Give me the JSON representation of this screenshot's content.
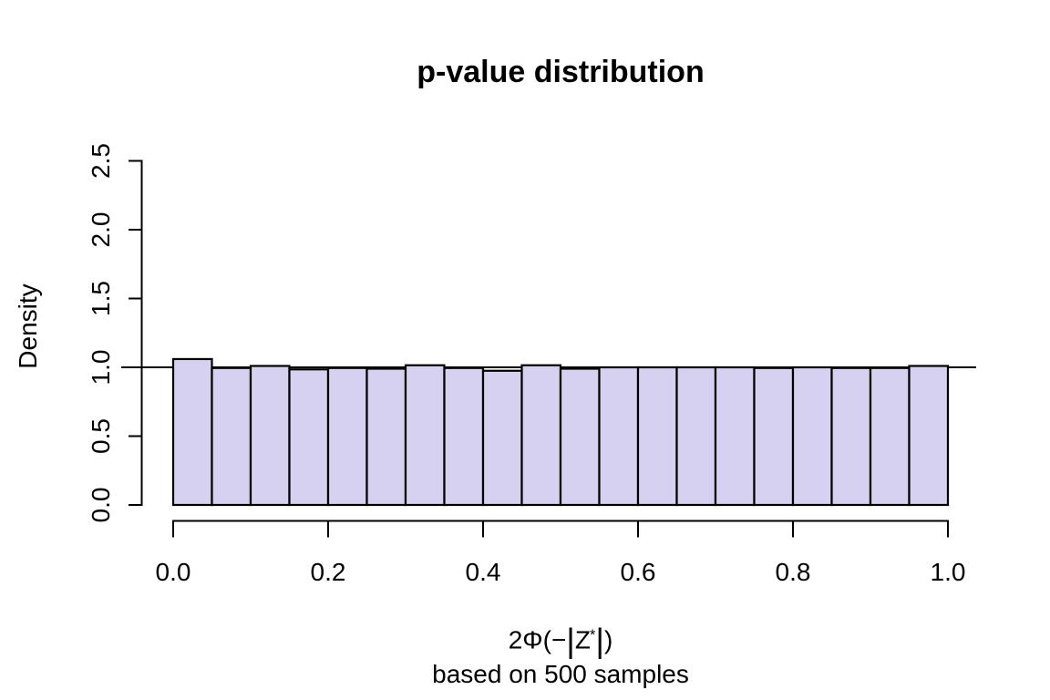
{
  "chart_data": {
    "type": "bar",
    "subtype": "histogram",
    "title": "p-value distribution",
    "ylabel": "Density",
    "xlabel": "2Φ(−|Z*|)",
    "xlabel_parts": {
      "pre": "2Φ(−",
      "abs_open": "|",
      "variable": "Z",
      "superscript": "*",
      "abs_close": "|",
      "post": ")"
    },
    "subtitle": "based on 500 samples",
    "bins": {
      "start": 0,
      "width": 0.05,
      "count": 20
    },
    "values": [
      1.06,
      0.995,
      1.01,
      0.985,
      0.995,
      0.99,
      1.015,
      0.995,
      0.975,
      1.015,
      0.99,
      1.0,
      1.0,
      1.0,
      1.0,
      0.995,
      1.0,
      0.995,
      0.995,
      1.01
    ],
    "x_ticks": {
      "values": [
        0,
        0.2,
        0.4,
        0.6,
        0.8,
        1.0
      ],
      "labels": [
        "0.0",
        "0.2",
        "0.4",
        "0.6",
        "0.8",
        "1.0"
      ]
    },
    "y_ticks": {
      "values": [
        0,
        0.5,
        1.0,
        1.5,
        2.0,
        2.5
      ],
      "labels": [
        "0.0",
        "0.5",
        "1.0",
        "1.5",
        "2.0",
        "2.5"
      ]
    },
    "xlim": [
      0,
      1
    ],
    "ylim": [
      0,
      2.5
    ],
    "reference_line_y": 1.0,
    "grid": false,
    "legend": null,
    "colors": {
      "bar_fill": "#D6D1F0",
      "bar_stroke": "#000000",
      "axis": "#000000",
      "reference_line": "#000000",
      "background": "#FFFFFF",
      "text": "#000000"
    }
  }
}
